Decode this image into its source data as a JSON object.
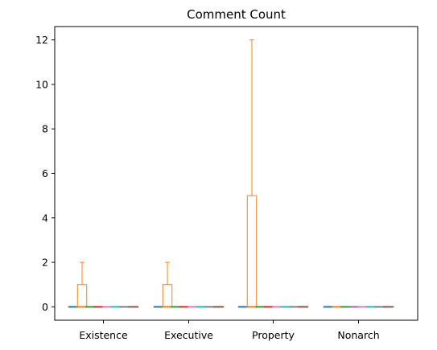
{
  "chart_data": {
    "type": "box",
    "title": "Comment Count",
    "xlabel": "",
    "ylabel": "",
    "categories": [
      "Existence",
      "Executive",
      "Property",
      "Nonarch"
    ],
    "ylim": [
      -0.6,
      12.6
    ],
    "yticks": [
      0,
      2,
      4,
      6,
      8,
      10,
      12
    ],
    "grid": false,
    "series_colors": [
      "#1f77b4",
      "#ff7f0e",
      "#2ca02c",
      "#d62728",
      "#e377c2",
      "#17becf",
      "#7f7f7f",
      "#8c564b",
      "#9467bd"
    ],
    "groups": [
      {
        "category": "Existence",
        "boxes": [
          {
            "color": "#1f77b4",
            "min": 0,
            "q1": 0,
            "median": 0,
            "q3": 0,
            "max": 0
          },
          {
            "color": "#ff7f0e",
            "min": 0,
            "q1": 0,
            "median": 0,
            "q3": 1,
            "max": 2
          },
          {
            "color": "#2ca02c",
            "min": 0,
            "q1": 0,
            "median": 0,
            "q3": 0,
            "max": 0
          },
          {
            "color": "#d62728",
            "min": 0,
            "q1": 0,
            "median": 0,
            "q3": 0,
            "max": 0
          },
          {
            "color": "#e377c2",
            "min": 0,
            "q1": 0,
            "median": 0,
            "q3": 0,
            "max": 0
          },
          {
            "color": "#17becf",
            "min": 0,
            "q1": 0,
            "median": 0,
            "q3": 0,
            "max": 0
          },
          {
            "color": "#7f7f7f",
            "min": 0,
            "q1": 0,
            "median": 0,
            "q3": 0,
            "max": 0
          },
          {
            "color": "#8c564b",
            "min": 0,
            "q1": 0,
            "median": 0,
            "q3": 0,
            "max": 0
          }
        ]
      },
      {
        "category": "Executive",
        "boxes": [
          {
            "color": "#1f77b4",
            "min": 0,
            "q1": 0,
            "median": 0,
            "q3": 0,
            "max": 0
          },
          {
            "color": "#ff7f0e",
            "min": 0,
            "q1": 0,
            "median": 0,
            "q3": 1,
            "max": 2
          },
          {
            "color": "#2ca02c",
            "min": 0,
            "q1": 0,
            "median": 0,
            "q3": 0,
            "max": 0
          },
          {
            "color": "#d62728",
            "min": 0,
            "q1": 0,
            "median": 0,
            "q3": 0,
            "max": 0
          },
          {
            "color": "#e377c2",
            "min": 0,
            "q1": 0,
            "median": 0,
            "q3": 0,
            "max": 0
          },
          {
            "color": "#17becf",
            "min": 0,
            "q1": 0,
            "median": 0,
            "q3": 0,
            "max": 0
          },
          {
            "color": "#7f7f7f",
            "min": 0,
            "q1": 0,
            "median": 0,
            "q3": 0,
            "max": 0
          },
          {
            "color": "#8c564b",
            "min": 0,
            "q1": 0,
            "median": 0,
            "q3": 0,
            "max": 0
          }
        ]
      },
      {
        "category": "Property",
        "boxes": [
          {
            "color": "#1f77b4",
            "min": 0,
            "q1": 0,
            "median": 0,
            "q3": 0,
            "max": 0
          },
          {
            "color": "#ff7f0e",
            "min": 0,
            "q1": 0,
            "median": 0,
            "q3": 5,
            "max": 12
          },
          {
            "color": "#2ca02c",
            "min": 0,
            "q1": 0,
            "median": 0,
            "q3": 0,
            "max": 0
          },
          {
            "color": "#d62728",
            "min": 0,
            "q1": 0,
            "median": 0,
            "q3": 0,
            "max": 0
          },
          {
            "color": "#e377c2",
            "min": 0,
            "q1": 0,
            "median": 0,
            "q3": 0,
            "max": 0
          },
          {
            "color": "#17becf",
            "min": 0,
            "q1": 0,
            "median": 0,
            "q3": 0,
            "max": 0
          },
          {
            "color": "#7f7f7f",
            "min": 0,
            "q1": 0,
            "median": 0,
            "q3": 0,
            "max": 0
          },
          {
            "color": "#8c564b",
            "min": 0,
            "q1": 0,
            "median": 0,
            "q3": 0,
            "max": 0
          }
        ]
      },
      {
        "category": "Nonarch",
        "boxes": [
          {
            "color": "#1f77b4",
            "min": 0,
            "q1": 0,
            "median": 0,
            "q3": 0,
            "max": 0
          },
          {
            "color": "#ff7f0e",
            "min": 0,
            "q1": 0,
            "median": 0,
            "q3": 0,
            "max": 0
          },
          {
            "color": "#2ca02c",
            "min": 0,
            "q1": 0,
            "median": 0,
            "q3": 0,
            "max": 0
          },
          {
            "color": "#9467bd",
            "min": 0,
            "q1": 0,
            "median": 0,
            "q3": 0,
            "max": 0
          },
          {
            "color": "#e377c2",
            "min": 0,
            "q1": 0,
            "median": 0,
            "q3": 0,
            "max": 0
          },
          {
            "color": "#17becf",
            "min": 0,
            "q1": 0,
            "median": 0,
            "q3": 0,
            "max": 0
          },
          {
            "color": "#7f7f7f",
            "min": 0,
            "q1": 0,
            "median": 0,
            "q3": 0,
            "max": 0
          },
          {
            "color": "#8c564b",
            "min": 0,
            "q1": 0,
            "median": 0,
            "q3": 0,
            "max": 0
          }
        ]
      }
    ]
  }
}
